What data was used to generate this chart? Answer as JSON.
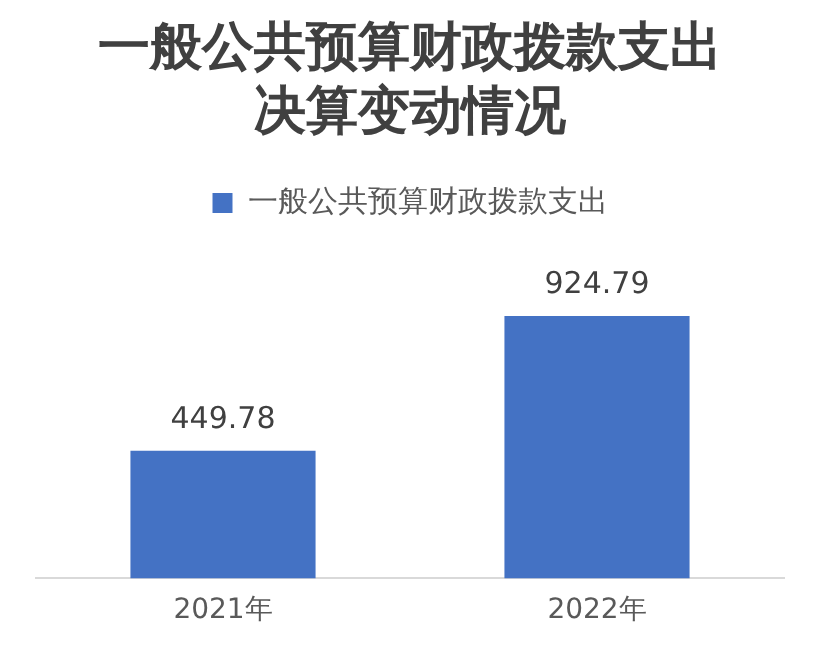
{
  "chart_data": {
    "type": "bar",
    "title": "一般公共预算财政拨款支出决算变动情况",
    "categories": [
      "2021年",
      "2022年"
    ],
    "series": [
      {
        "name": "一般公共预算财政拨款支出",
        "color": "#4472c4",
        "values": [
          449.78,
          924.79
        ]
      }
    ],
    "data_labels": true,
    "legend": "top",
    "grid": false
  }
}
